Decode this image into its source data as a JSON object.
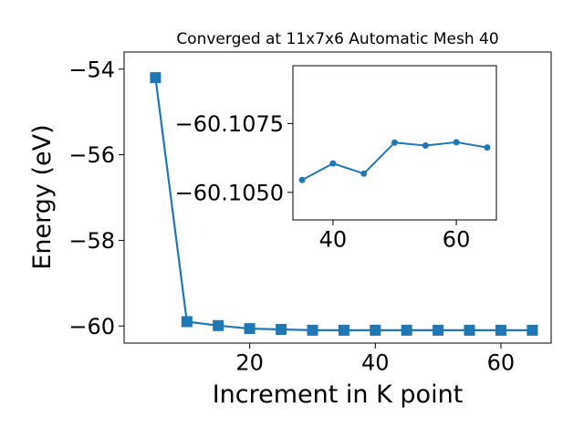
{
  "chart_data": [
    {
      "type": "line",
      "title": "Converged at 11x7x6 Automatic Mesh 40",
      "xlabel": "Increment in K point",
      "ylabel": "Energy (eV)",
      "xlim": [
        0.0,
        68.0
      ],
      "ylim": [
        -60.4,
        -53.6
      ],
      "xticks": [
        20,
        40,
        60
      ],
      "yticks": [
        -60,
        -58,
        -56,
        -54
      ],
      "xtick_labels": [
        "20",
        "40",
        "60"
      ],
      "ytick_labels": [
        "−60",
        "−58",
        "−56",
        "−54"
      ],
      "grid": false,
      "marker": "square",
      "color": "#1f77b4",
      "series": [
        {
          "x": [
            5,
            10,
            15,
            20,
            25,
            30,
            35,
            40,
            45,
            50,
            55,
            60,
            65
          ],
          "y": [
            -54.2,
            -59.9,
            -59.99,
            -60.06,
            -60.08,
            -60.1,
            -60.1,
            -60.1,
            -60.1,
            -60.1,
            -60.1,
            -60.1,
            -60.1
          ]
        }
      ]
    },
    {
      "type": "line",
      "title": "",
      "xlabel": "",
      "ylabel": "",
      "xlim": [
        33.5,
        66.5
      ],
      "ylim": [
        -60.104,
        -60.1096
      ],
      "xticks": [
        40,
        60
      ],
      "yticks": [
        -60.105,
        -60.1075
      ],
      "xtick_labels": [
        "40",
        "60"
      ],
      "ytick_labels": [
        "−60.1050",
        "−60.1075"
      ],
      "grid": false,
      "marker": "circle",
      "color": "#1f77b4",
      "series": [
        {
          "x": [
            35,
            40,
            45,
            50,
            55,
            60,
            65
          ],
          "y": [
            -60.10545,
            -60.10605,
            -60.10568,
            -60.10681,
            -60.1067,
            -60.10682,
            -60.10663
          ]
        }
      ]
    }
  ]
}
